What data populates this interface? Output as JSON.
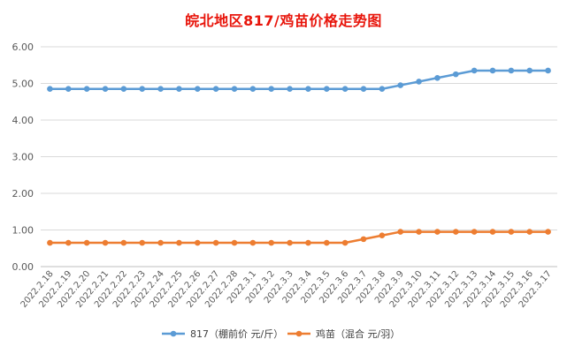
{
  "chart_data": {
    "type": "line",
    "title": "皖北地区817/鸡苗价格走势图",
    "xlabel": "",
    "ylabel": "",
    "ylim": [
      0,
      6
    ],
    "yticks": [
      "0.00",
      "1.00",
      "2.00",
      "3.00",
      "4.00",
      "5.00",
      "6.00"
    ],
    "grid": true,
    "legend_position": "bottom",
    "categories": [
      "2022.2.18",
      "2022.2.19",
      "2022.2.20",
      "2022.2.21",
      "2022.2.22",
      "2022.2.23",
      "2022.2.24",
      "2022.2.25",
      "2022.2.26",
      "2022.2.27",
      "2022.2.28",
      "2022.3.1",
      "2022.3.2",
      "2022.3.3",
      "2022.3.4",
      "2022.3.5",
      "2022.3.6",
      "2022.3.7",
      "2022.3.8",
      "2022.3.9",
      "2022.3.10",
      "2022.3.11",
      "2022.3.12",
      "2022.3.13",
      "2022.3.14",
      "2022.3.15",
      "2022.3.16",
      "2022.3.17"
    ],
    "series": [
      {
        "name": "817（棚前价 元/斤）",
        "color": "#5b9bd5",
        "values": [
          4.85,
          4.85,
          4.85,
          4.85,
          4.85,
          4.85,
          4.85,
          4.85,
          4.85,
          4.85,
          4.85,
          4.85,
          4.85,
          4.85,
          4.85,
          4.85,
          4.85,
          4.85,
          4.85,
          4.95,
          5.05,
          5.15,
          5.25,
          5.35,
          5.35,
          5.35,
          5.35,
          5.35
        ]
      },
      {
        "name": "鸡苗（混合 元/羽）",
        "color": "#ed7d31",
        "values": [
          0.65,
          0.65,
          0.65,
          0.65,
          0.65,
          0.65,
          0.65,
          0.65,
          0.65,
          0.65,
          0.65,
          0.65,
          0.65,
          0.65,
          0.65,
          0.65,
          0.65,
          0.75,
          0.85,
          0.95,
          0.95,
          0.95,
          0.95,
          0.95,
          0.95,
          0.95,
          0.95,
          0.95
        ]
      }
    ]
  }
}
